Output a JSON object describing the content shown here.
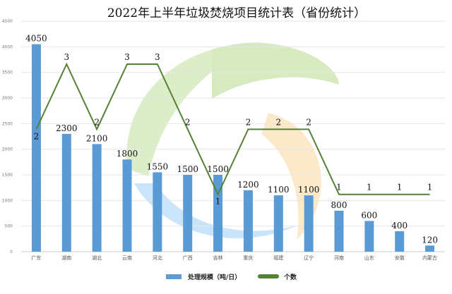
{
  "chart_data": {
    "type": "bar",
    "title": "2022年上半年垃圾焚烧项目统计表（省份统计）",
    "categories": [
      "广东",
      "湖南",
      "湖北",
      "云南",
      "河北",
      "广西",
      "吉林",
      "重庆",
      "福建",
      "辽宁",
      "河南",
      "山东",
      "安徽",
      "内蒙古"
    ],
    "ylim": [
      0,
      4500
    ],
    "yticks": [
      0,
      500,
      1000,
      1500,
      2000,
      2500,
      3000,
      3500,
      4000,
      4500
    ],
    "y2lim": [
      0.12,
      3.66
    ],
    "grid": true,
    "legend_position": "bottom",
    "series": [
      {
        "name": "处理规模（吨/日）",
        "type": "bar",
        "color": "#5b9bd5",
        "values": [
          4050,
          2300,
          2100,
          1800,
          1550,
          1500,
          1500,
          1200,
          1100,
          1100,
          800,
          600,
          400,
          120
        ]
      },
      {
        "name": "个数",
        "type": "line",
        "axis": "secondary",
        "color": "#548235",
        "values": [
          2,
          3,
          2,
          3,
          3,
          2,
          1,
          2,
          2,
          2,
          1,
          1,
          1,
          1
        ]
      }
    ]
  }
}
